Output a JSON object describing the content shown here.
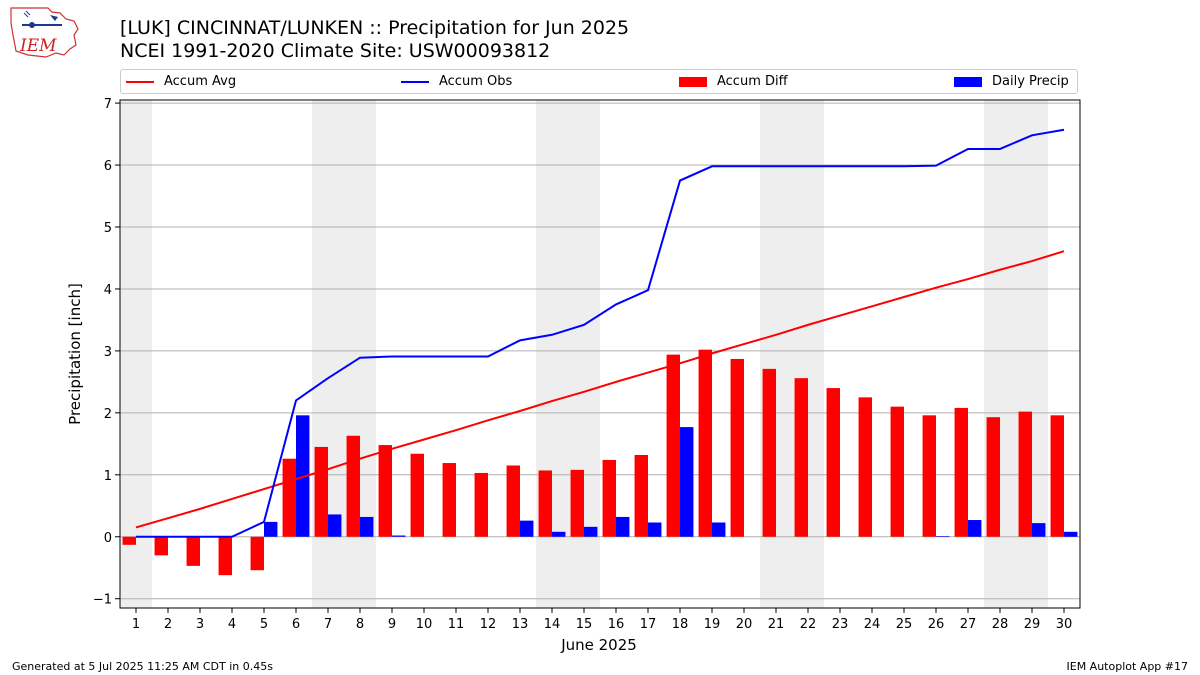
{
  "header": {
    "title_line1": "[LUK] CINCINNAT/LUNKEN :: Precipitation for Jun 2025",
    "title_line2": "NCEI 1991-2020 Climate Site: USW00093812",
    "logo_text": "IEM"
  },
  "footer": {
    "generated": "Generated at 5 Jul 2025 11:25 AM CDT in 0.45s",
    "app": "IEM Autoplot App #17"
  },
  "legend": [
    {
      "label": "Accum Avg",
      "kind": "line",
      "color": "#ff0000"
    },
    {
      "label": "Accum Obs",
      "kind": "line",
      "color": "#0000ff"
    },
    {
      "label": "Accum Diff",
      "kind": "bar",
      "color": "#ff0000"
    },
    {
      "label": "Daily Precip",
      "kind": "bar",
      "color": "#0000ff"
    }
  ],
  "chart_data": {
    "type": "bar",
    "xlabel": "June 2025",
    "ylabel": "Precipitation [inch]",
    "xlim": [
      0.5,
      30.5
    ],
    "ylim": [
      -1.15,
      7.05
    ],
    "yticks": [
      -1,
      0,
      1,
      2,
      3,
      4,
      5,
      6,
      7
    ],
    "x": [
      1,
      2,
      3,
      4,
      5,
      6,
      7,
      8,
      9,
      10,
      11,
      12,
      13,
      14,
      15,
      16,
      17,
      18,
      19,
      20,
      21,
      22,
      23,
      24,
      25,
      26,
      27,
      28,
      29,
      30
    ],
    "grid": "horizontal",
    "weekend_shading": [
      [
        0.5,
        1.5
      ],
      [
        6.5,
        8.5
      ],
      [
        13.5,
        15.5
      ],
      [
        20.5,
        22.5
      ],
      [
        27.5,
        29.5
      ]
    ],
    "series": [
      {
        "name": "Accum Avg",
        "type": "line",
        "color": "#ff0000",
        "values": [
          0.15,
          0.3,
          0.45,
          0.61,
          0.77,
          0.93,
          1.09,
          1.26,
          1.42,
          1.57,
          1.72,
          1.88,
          2.03,
          2.19,
          2.34,
          2.5,
          2.65,
          2.8,
          2.96,
          3.11,
          3.26,
          3.42,
          3.57,
          3.72,
          3.87,
          4.02,
          4.16,
          4.31,
          4.45,
          4.61
        ]
      },
      {
        "name": "Accum Obs",
        "type": "line",
        "color": "#0000ff",
        "values": [
          0.0,
          0.0,
          0.0,
          0.0,
          0.24,
          2.2,
          2.56,
          2.89,
          2.91,
          2.91,
          2.91,
          2.91,
          3.17,
          3.26,
          3.42,
          3.75,
          3.98,
          5.75,
          5.98,
          5.98,
          5.98,
          5.98,
          5.98,
          5.98,
          5.98,
          5.99,
          6.26,
          6.26,
          6.48,
          6.57
        ]
      },
      {
        "name": "Accum Diff",
        "type": "bar",
        "color": "#ff0000",
        "values": [
          -0.13,
          -0.3,
          -0.47,
          -0.62,
          -0.54,
          1.26,
          1.45,
          1.63,
          1.48,
          1.34,
          1.19,
          1.03,
          1.15,
          1.07,
          1.08,
          1.24,
          1.32,
          2.94,
          3.02,
          2.87,
          2.71,
          2.56,
          2.4,
          2.25,
          2.1,
          1.96,
          2.08,
          1.93,
          2.02,
          1.96
        ]
      },
      {
        "name": "Daily Precip",
        "type": "bar",
        "color": "#0000ff",
        "values": [
          0,
          0,
          0,
          0,
          0.24,
          1.96,
          0.36,
          0.32,
          0.02,
          0,
          0,
          0,
          0.26,
          0.08,
          0.16,
          0.32,
          0.23,
          1.77,
          0.23,
          0,
          0,
          0,
          0,
          0,
          0,
          0.01,
          0.27,
          0,
          0.22,
          0.08
        ]
      }
    ]
  }
}
